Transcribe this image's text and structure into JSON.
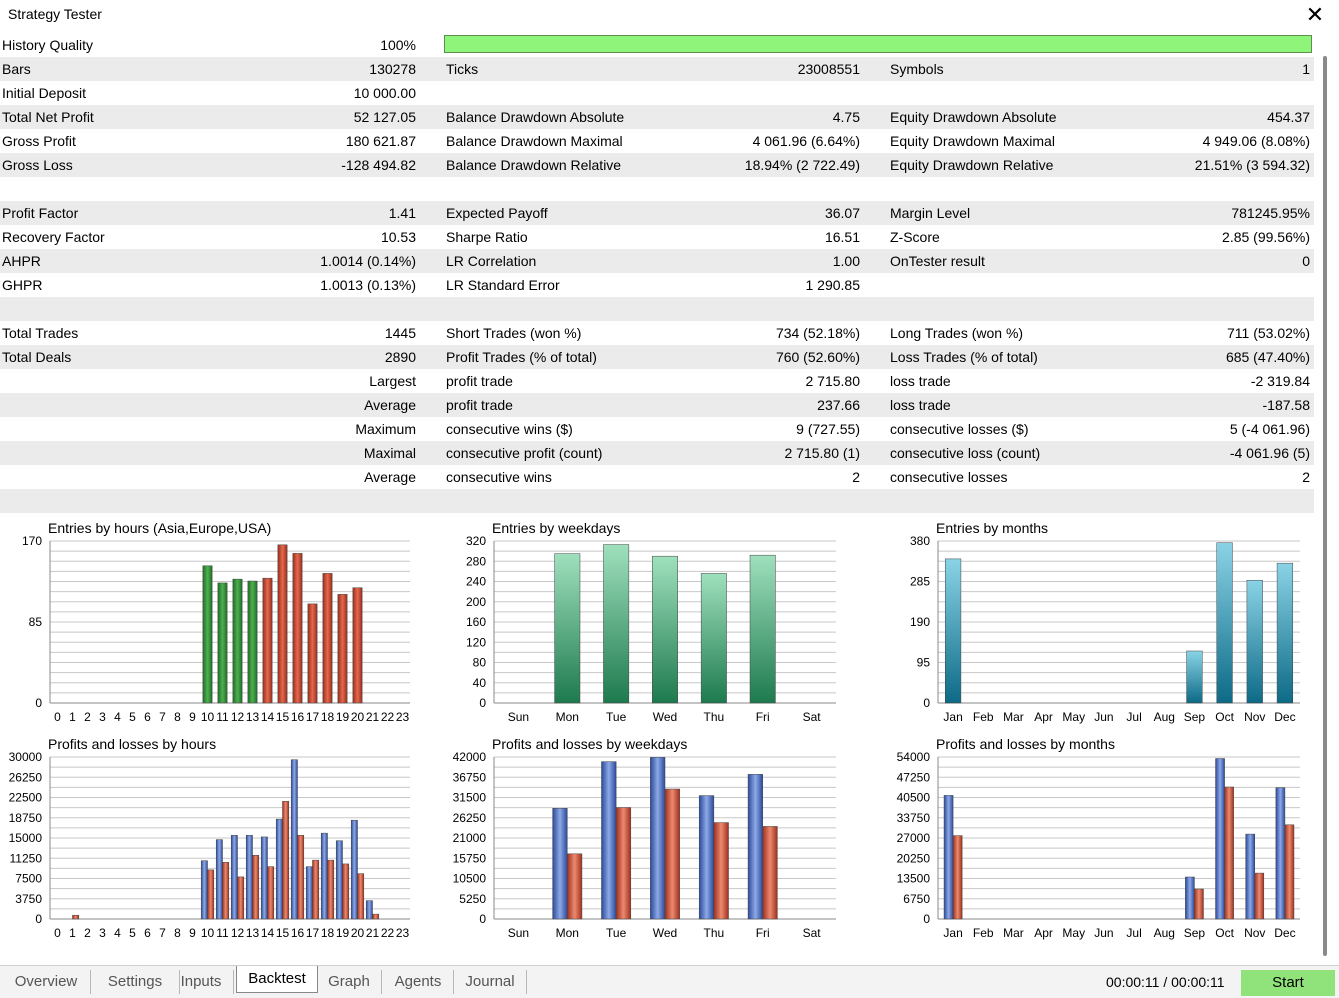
{
  "window": {
    "title": "Strategy Tester"
  },
  "stats": {
    "rows": [
      {
        "l1": "History Quality",
        "v1": "100%",
        "bar": 1.0
      },
      {
        "l1": "Bars",
        "v1": "130278",
        "l2": "Ticks",
        "v2": "23008551",
        "l3": "Symbols",
        "v3": "1"
      },
      {
        "l1": "Initial Deposit",
        "v1": "10 000.00"
      },
      {
        "l1": "Total Net Profit",
        "v1": "52 127.05",
        "l2": "Balance Drawdown Absolute",
        "v2": "4.75",
        "l3": "Equity Drawdown Absolute",
        "v3": "454.37"
      },
      {
        "l1": "Gross Profit",
        "v1": "180 621.87",
        "l2": "Balance Drawdown Maximal",
        "v2": "4 061.96 (6.64%)",
        "l3": "Equity Drawdown Maximal",
        "v3": "4 949.06 (8.08%)"
      },
      {
        "l1": "Gross Loss",
        "v1": "-128 494.82",
        "l2": "Balance Drawdown Relative",
        "v2": "18.94% (2 722.49)",
        "l3": "Equity Drawdown Relative",
        "v3": "21.51% (3 594.32)"
      },
      {},
      {
        "l1": "Profit Factor",
        "v1": "1.41",
        "l2": "Expected Payoff",
        "v2": "36.07",
        "l3": "Margin Level",
        "v3": "781245.95%"
      },
      {
        "l1": "Recovery Factor",
        "v1": "10.53",
        "l2": "Sharpe Ratio",
        "v2": "16.51",
        "l3": "Z-Score",
        "v3": "2.85 (99.56%)"
      },
      {
        "l1": "AHPR",
        "v1": "1.0014 (0.14%)",
        "l2": "LR Correlation",
        "v2": "1.00",
        "l3": "OnTester result",
        "v3": "0"
      },
      {
        "l1": "GHPR",
        "v1": "1.0013 (0.13%)",
        "l2": "LR Standard Error",
        "v2": "1 290.85"
      },
      {},
      {
        "l1": "Total Trades",
        "v1": "1445",
        "l2": "Short Trades (won %)",
        "v2": "734 (52.18%)",
        "l3": "Long Trades (won %)",
        "v3": "711 (53.02%)"
      },
      {
        "l1": "Total Deals",
        "v1": "2890",
        "l2": "Profit Trades (% of total)",
        "v2": "760 (52.60%)",
        "l3": "Loss Trades (% of total)",
        "v3": "685 (47.40%)"
      },
      {
        "r1": "Largest",
        "l2": "profit trade",
        "v2": "2 715.80",
        "l3": "loss trade",
        "v3": "-2 319.84"
      },
      {
        "r1": "Average",
        "l2": "profit trade",
        "v2": "237.66",
        "l3": "loss trade",
        "v3": "-187.58"
      },
      {
        "r1": "Maximum",
        "l2": "consecutive wins ($)",
        "v2": "9 (727.55)",
        "l3": "consecutive losses ($)",
        "v3": "5 (-4 061.96)"
      },
      {
        "r1": "Maximal",
        "l2": "consecutive profit (count)",
        "v2": "2 715.80 (1)",
        "l3": "consecutive loss (count)",
        "v3": "-4 061.96 (5)"
      },
      {
        "r1": "Average",
        "l2": "consecutive wins",
        "v2": "2",
        "l3": "consecutive losses",
        "v3": "2"
      },
      {}
    ]
  },
  "colors": {
    "green_bar": "#2e8b3a",
    "red_bar": "#c0442c",
    "mint_bar": "#3fae74",
    "teal_bar": "#1f8aa6",
    "blue_bar": "#4063b8",
    "quality_bar": "#8ef57a",
    "start_button": "#8fe37a"
  },
  "chart_data": [
    {
      "type": "bar",
      "title": "Entries by hours (Asia,Europe,USA)",
      "categories": [
        "0",
        "1",
        "2",
        "3",
        "4",
        "5",
        "6",
        "7",
        "8",
        "9",
        "10",
        "11",
        "12",
        "13",
        "14",
        "15",
        "16",
        "17",
        "18",
        "19",
        "20",
        "21",
        "22",
        "23"
      ],
      "yticks": [
        "170",
        "85",
        "0"
      ],
      "ylim": [
        0,
        170
      ],
      "values": [
        0,
        0,
        0,
        0,
        0,
        0,
        0,
        0,
        0,
        0,
        144,
        126,
        130,
        128,
        131,
        166,
        157,
        104,
        136,
        114,
        121,
        0,
        0,
        0
      ],
      "bar_colors": [
        "g",
        "g",
        "g",
        "g",
        "g",
        "g",
        "g",
        "g",
        "g",
        "g",
        "g",
        "g",
        "g",
        "g",
        "r",
        "r",
        "r",
        "r",
        "r",
        "r",
        "r",
        "r",
        "r",
        "r"
      ]
    },
    {
      "type": "bar",
      "title": "Entries by weekdays",
      "categories": [
        "Sun",
        "Mon",
        "Tue",
        "Wed",
        "Thu",
        "Fri",
        "Sat"
      ],
      "yticks": [
        "320",
        "280",
        "240",
        "200",
        "160",
        "120",
        "80",
        "40",
        "0"
      ],
      "ylim": [
        0,
        320
      ],
      "values": [
        0,
        295,
        313,
        290,
        256,
        292,
        0
      ]
    },
    {
      "type": "bar",
      "title": "Entries by months",
      "categories": [
        "Jan",
        "Feb",
        "Mar",
        "Apr",
        "May",
        "Jun",
        "Jul",
        "Aug",
        "Sep",
        "Oct",
        "Nov",
        "Dec"
      ],
      "yticks": [
        "380",
        "285",
        "190",
        "95",
        "0"
      ],
      "ylim": [
        0,
        380
      ],
      "values": [
        338,
        0,
        0,
        0,
        0,
        0,
        0,
        0,
        122,
        376,
        288,
        328
      ]
    },
    {
      "type": "bar",
      "title": "Profits and losses by hours",
      "categories": [
        "0",
        "1",
        "2",
        "3",
        "4",
        "5",
        "6",
        "7",
        "8",
        "9",
        "10",
        "11",
        "12",
        "13",
        "14",
        "15",
        "16",
        "17",
        "18",
        "19",
        "20",
        "21",
        "22",
        "23"
      ],
      "yticks": [
        "30000",
        "26250",
        "22500",
        "18750",
        "15000",
        "11250",
        "7500",
        "3750",
        "0"
      ],
      "ylim": [
        0,
        30000
      ],
      "series": [
        {
          "name": "",
          "values": [
            0,
            0,
            0,
            0,
            0,
            0,
            0,
            0,
            0,
            0,
            10800,
            14700,
            15500,
            15500,
            15200,
            18500,
            29500,
            9700,
            15900,
            14500,
            18300,
            3400,
            0,
            0
          ]
        },
        {
          "name": "",
          "values": [
            0,
            700,
            0,
            0,
            0,
            0,
            0,
            0,
            0,
            0,
            9100,
            10500,
            7800,
            11800,
            9700,
            21800,
            15500,
            10900,
            10900,
            10200,
            8400,
            900,
            0,
            0
          ]
        }
      ]
    },
    {
      "type": "bar",
      "title": "Profits and losses by weekdays",
      "categories": [
        "Sun",
        "Mon",
        "Tue",
        "Wed",
        "Thu",
        "Fri",
        "Sat"
      ],
      "yticks": [
        "42000",
        "36750",
        "31500",
        "26250",
        "21000",
        "15750",
        "10500",
        "5250",
        "0"
      ],
      "ylim": [
        0,
        42000
      ],
      "series": [
        {
          "name": "",
          "values": [
            0,
            28700,
            40800,
            41900,
            32000,
            37500,
            0
          ]
        },
        {
          "name": "",
          "values": [
            0,
            16900,
            28900,
            33700,
            25000,
            24000,
            0
          ]
        }
      ]
    },
    {
      "type": "bar",
      "title": "Profits and losses by months",
      "categories": [
        "Jan",
        "Feb",
        "Mar",
        "Apr",
        "May",
        "Jun",
        "Jul",
        "Aug",
        "Sep",
        "Oct",
        "Nov",
        "Dec"
      ],
      "yticks": [
        "54000",
        "47250",
        "40500",
        "33750",
        "27000",
        "20250",
        "13500",
        "6750",
        "0"
      ],
      "ylim": [
        0,
        54000
      ],
      "series": [
        {
          "name": "",
          "values": [
            41200,
            0,
            0,
            0,
            0,
            0,
            0,
            0,
            14000,
            53500,
            28300,
            43800
          ]
        },
        {
          "name": "",
          "values": [
            27800,
            0,
            0,
            0,
            0,
            0,
            0,
            0,
            10000,
            44000,
            15300,
            31400
          ]
        }
      ]
    }
  ],
  "tabs": [
    "Overview",
    "Settings",
    "Inputs",
    "Backtest",
    "Graph",
    "Agents",
    "Journal"
  ],
  "active_tab": "Backtest",
  "timer": "00:00:11 / 00:00:11",
  "start_label": "Start"
}
